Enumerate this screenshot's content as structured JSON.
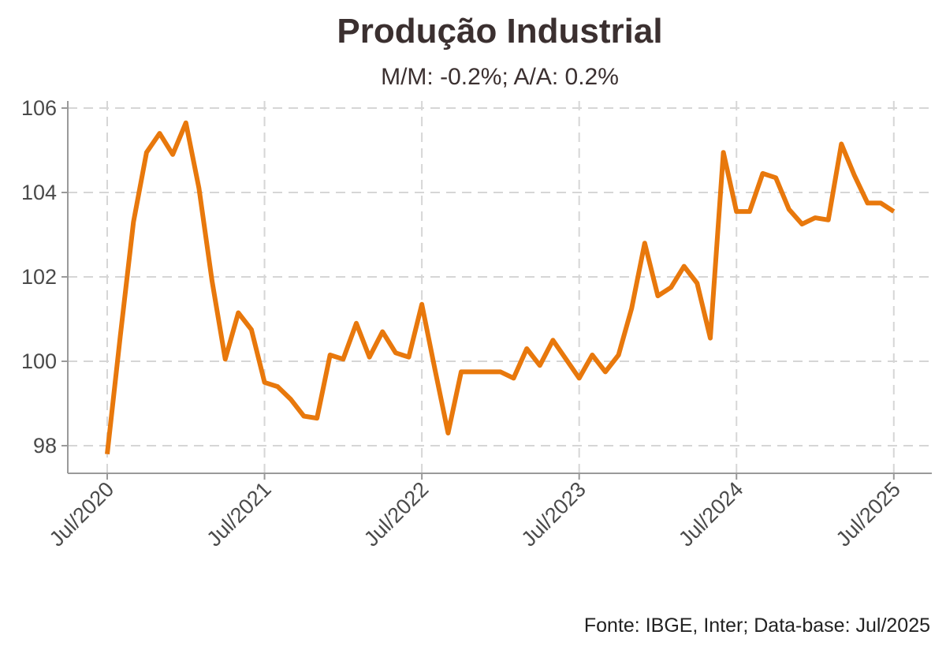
{
  "chart_data": {
    "type": "line",
    "title": "Produção Industrial",
    "subtitle": "M/M: -0.2%; A/A: 0.2%",
    "caption": "Fonte: IBGE, Inter; Data-base: Jul/2025",
    "xlabel": "",
    "ylabel": "",
    "ylim": [
      97.2,
      106.2
    ],
    "yticks": [
      98,
      100,
      102,
      104,
      106
    ],
    "xticks": [
      {
        "label": "Jul/2020",
        "index": 0
      },
      {
        "label": "Jul/2021",
        "index": 12
      },
      {
        "label": "Jul/2022",
        "index": 24
      },
      {
        "label": "Jul/2023",
        "index": 36
      },
      {
        "label": "Jul/2024",
        "index": 48
      },
      {
        "label": "Jul/2025",
        "index": 60
      }
    ],
    "grid": true,
    "legend": "none",
    "color": "#e8780c",
    "series": [
      {
        "values": [
          97.8,
          100.6,
          103.3,
          104.95,
          105.4,
          104.9,
          105.65,
          104.1,
          101.9,
          100.05,
          101.15,
          100.75,
          99.5,
          99.4,
          99.1,
          98.7,
          98.65,
          100.15,
          100.05,
          100.9,
          100.1,
          100.7,
          100.2,
          100.1,
          101.35,
          99.8,
          98.3,
          99.75,
          99.75,
          99.75,
          99.75,
          99.6,
          100.3,
          99.9,
          100.5,
          100.05,
          99.6,
          100.15,
          99.75,
          100.15,
          101.25,
          102.8,
          101.55,
          101.75,
          102.25,
          101.85,
          100.55,
          104.95,
          103.55,
          103.55,
          104.45,
          104.35,
          103.6,
          103.25,
          103.4,
          103.35,
          105.15,
          104.4,
          103.75,
          103.75,
          103.55
        ]
      }
    ]
  }
}
